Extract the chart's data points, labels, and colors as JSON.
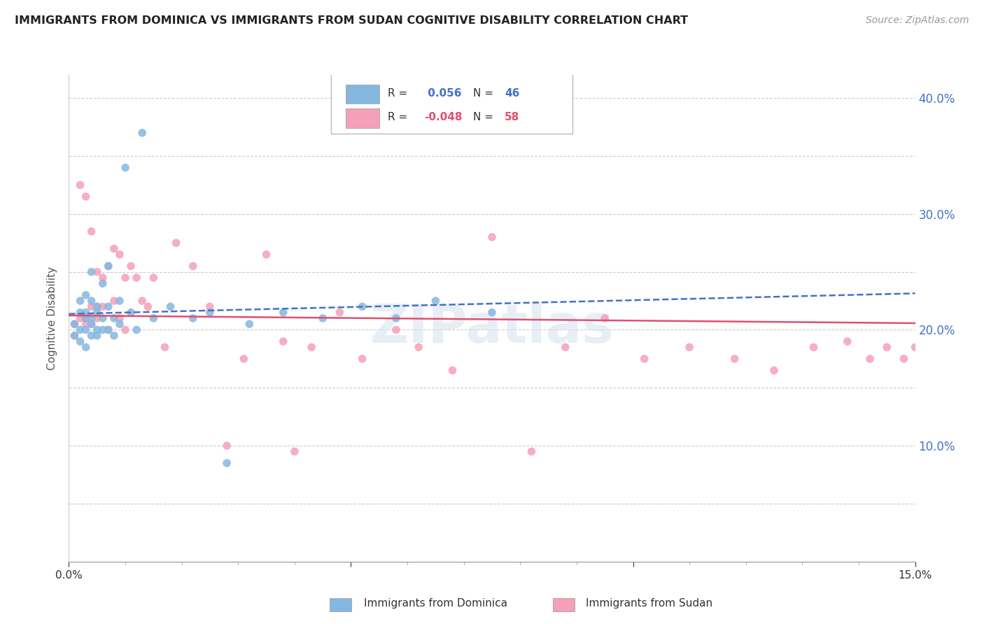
{
  "title": "IMMIGRANTS FROM DOMINICA VS IMMIGRANTS FROM SUDAN COGNITIVE DISABILITY CORRELATION CHART",
  "source": "Source: ZipAtlas.com",
  "ylabel": "Cognitive Disability",
  "xlim": [
    0.0,
    0.15
  ],
  "ylim": [
    0.0,
    0.42
  ],
  "color_dominica": "#85b8e0",
  "color_sudan": "#f4a0b8",
  "line_color_dominica": "#4472c4",
  "line_color_sudan": "#e05070",
  "background_color": "#ffffff",
  "grid_color": "#cccccc",
  "watermark": "ZIPatlas",
  "r1": " 0.056",
  "n1": "46",
  "r2": "-0.048",
  "n2": "58",
  "dominica_x": [
    0.001,
    0.001,
    0.002,
    0.002,
    0.002,
    0.002,
    0.003,
    0.003,
    0.003,
    0.003,
    0.003,
    0.004,
    0.004,
    0.004,
    0.004,
    0.004,
    0.005,
    0.005,
    0.005,
    0.005,
    0.006,
    0.006,
    0.006,
    0.007,
    0.007,
    0.007,
    0.008,
    0.008,
    0.009,
    0.009,
    0.01,
    0.011,
    0.012,
    0.013,
    0.015,
    0.018,
    0.022,
    0.025,
    0.028,
    0.032,
    0.038,
    0.045,
    0.052,
    0.058,
    0.065,
    0.075
  ],
  "dominica_y": [
    0.205,
    0.195,
    0.215,
    0.2,
    0.225,
    0.19,
    0.21,
    0.23,
    0.2,
    0.215,
    0.185,
    0.25,
    0.21,
    0.195,
    0.225,
    0.205,
    0.22,
    0.2,
    0.215,
    0.195,
    0.24,
    0.21,
    0.2,
    0.22,
    0.255,
    0.2,
    0.21,
    0.195,
    0.225,
    0.205,
    0.34,
    0.215,
    0.2,
    0.37,
    0.21,
    0.22,
    0.21,
    0.215,
    0.085,
    0.205,
    0.215,
    0.21,
    0.22,
    0.21,
    0.225,
    0.215
  ],
  "sudan_x": [
    0.001,
    0.001,
    0.002,
    0.002,
    0.003,
    0.003,
    0.003,
    0.004,
    0.004,
    0.004,
    0.005,
    0.005,
    0.005,
    0.006,
    0.006,
    0.007,
    0.007,
    0.008,
    0.008,
    0.009,
    0.009,
    0.01,
    0.01,
    0.011,
    0.012,
    0.013,
    0.014,
    0.015,
    0.017,
    0.019,
    0.022,
    0.025,
    0.028,
    0.031,
    0.035,
    0.038,
    0.04,
    0.043,
    0.048,
    0.052,
    0.058,
    0.062,
    0.068,
    0.075,
    0.082,
    0.088,
    0.095,
    0.102,
    0.11,
    0.118,
    0.125,
    0.132,
    0.138,
    0.142,
    0.145,
    0.148,
    0.15,
    0.152
  ],
  "sudan_y": [
    0.205,
    0.195,
    0.325,
    0.21,
    0.315,
    0.205,
    0.21,
    0.285,
    0.22,
    0.205,
    0.25,
    0.22,
    0.21,
    0.245,
    0.22,
    0.255,
    0.2,
    0.27,
    0.225,
    0.265,
    0.21,
    0.245,
    0.2,
    0.255,
    0.245,
    0.225,
    0.22,
    0.245,
    0.185,
    0.275,
    0.255,
    0.22,
    0.1,
    0.175,
    0.265,
    0.19,
    0.095,
    0.185,
    0.215,
    0.175,
    0.2,
    0.185,
    0.165,
    0.28,
    0.095,
    0.185,
    0.21,
    0.175,
    0.185,
    0.175,
    0.165,
    0.185,
    0.19,
    0.175,
    0.185,
    0.175,
    0.185,
    0.175
  ]
}
